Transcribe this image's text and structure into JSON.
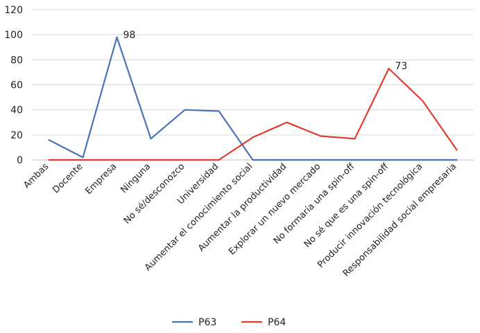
{
  "chart_data": {
    "type": "line",
    "categories": [
      "Ambas",
      "Docente",
      "Empresa",
      "Ninguna",
      "No sé/desconozco",
      "Universidad",
      "Aumentar el conocimiento social",
      "Aumentar la productividad",
      "Explorar un nuevo mercado",
      "No formaría una spin-off",
      "No sé que es una spin-off",
      "Producir innovación tecnológica",
      "Responsabilidad social empresaria"
    ],
    "series": [
      {
        "name": "P63",
        "color": "#4a72b8",
        "values": [
          16,
          2,
          98,
          17,
          40,
          39,
          0,
          0,
          0,
          0,
          0,
          0,
          0
        ]
      },
      {
        "name": "P64",
        "color": "#e23b2e",
        "values": [
          0,
          0,
          0,
          0,
          0,
          0,
          18,
          30,
          19,
          17,
          73,
          47,
          8
        ]
      }
    ],
    "data_labels": [
      {
        "series": 0,
        "index": 2,
        "text": "98"
      },
      {
        "series": 1,
        "index": 10,
        "text": "73"
      }
    ],
    "yticks": [
      "0",
      "20",
      "40",
      "60",
      "80",
      "100",
      "120"
    ],
    "ylim": [
      0,
      120
    ],
    "grid": true,
    "legend_position": "bottom"
  }
}
